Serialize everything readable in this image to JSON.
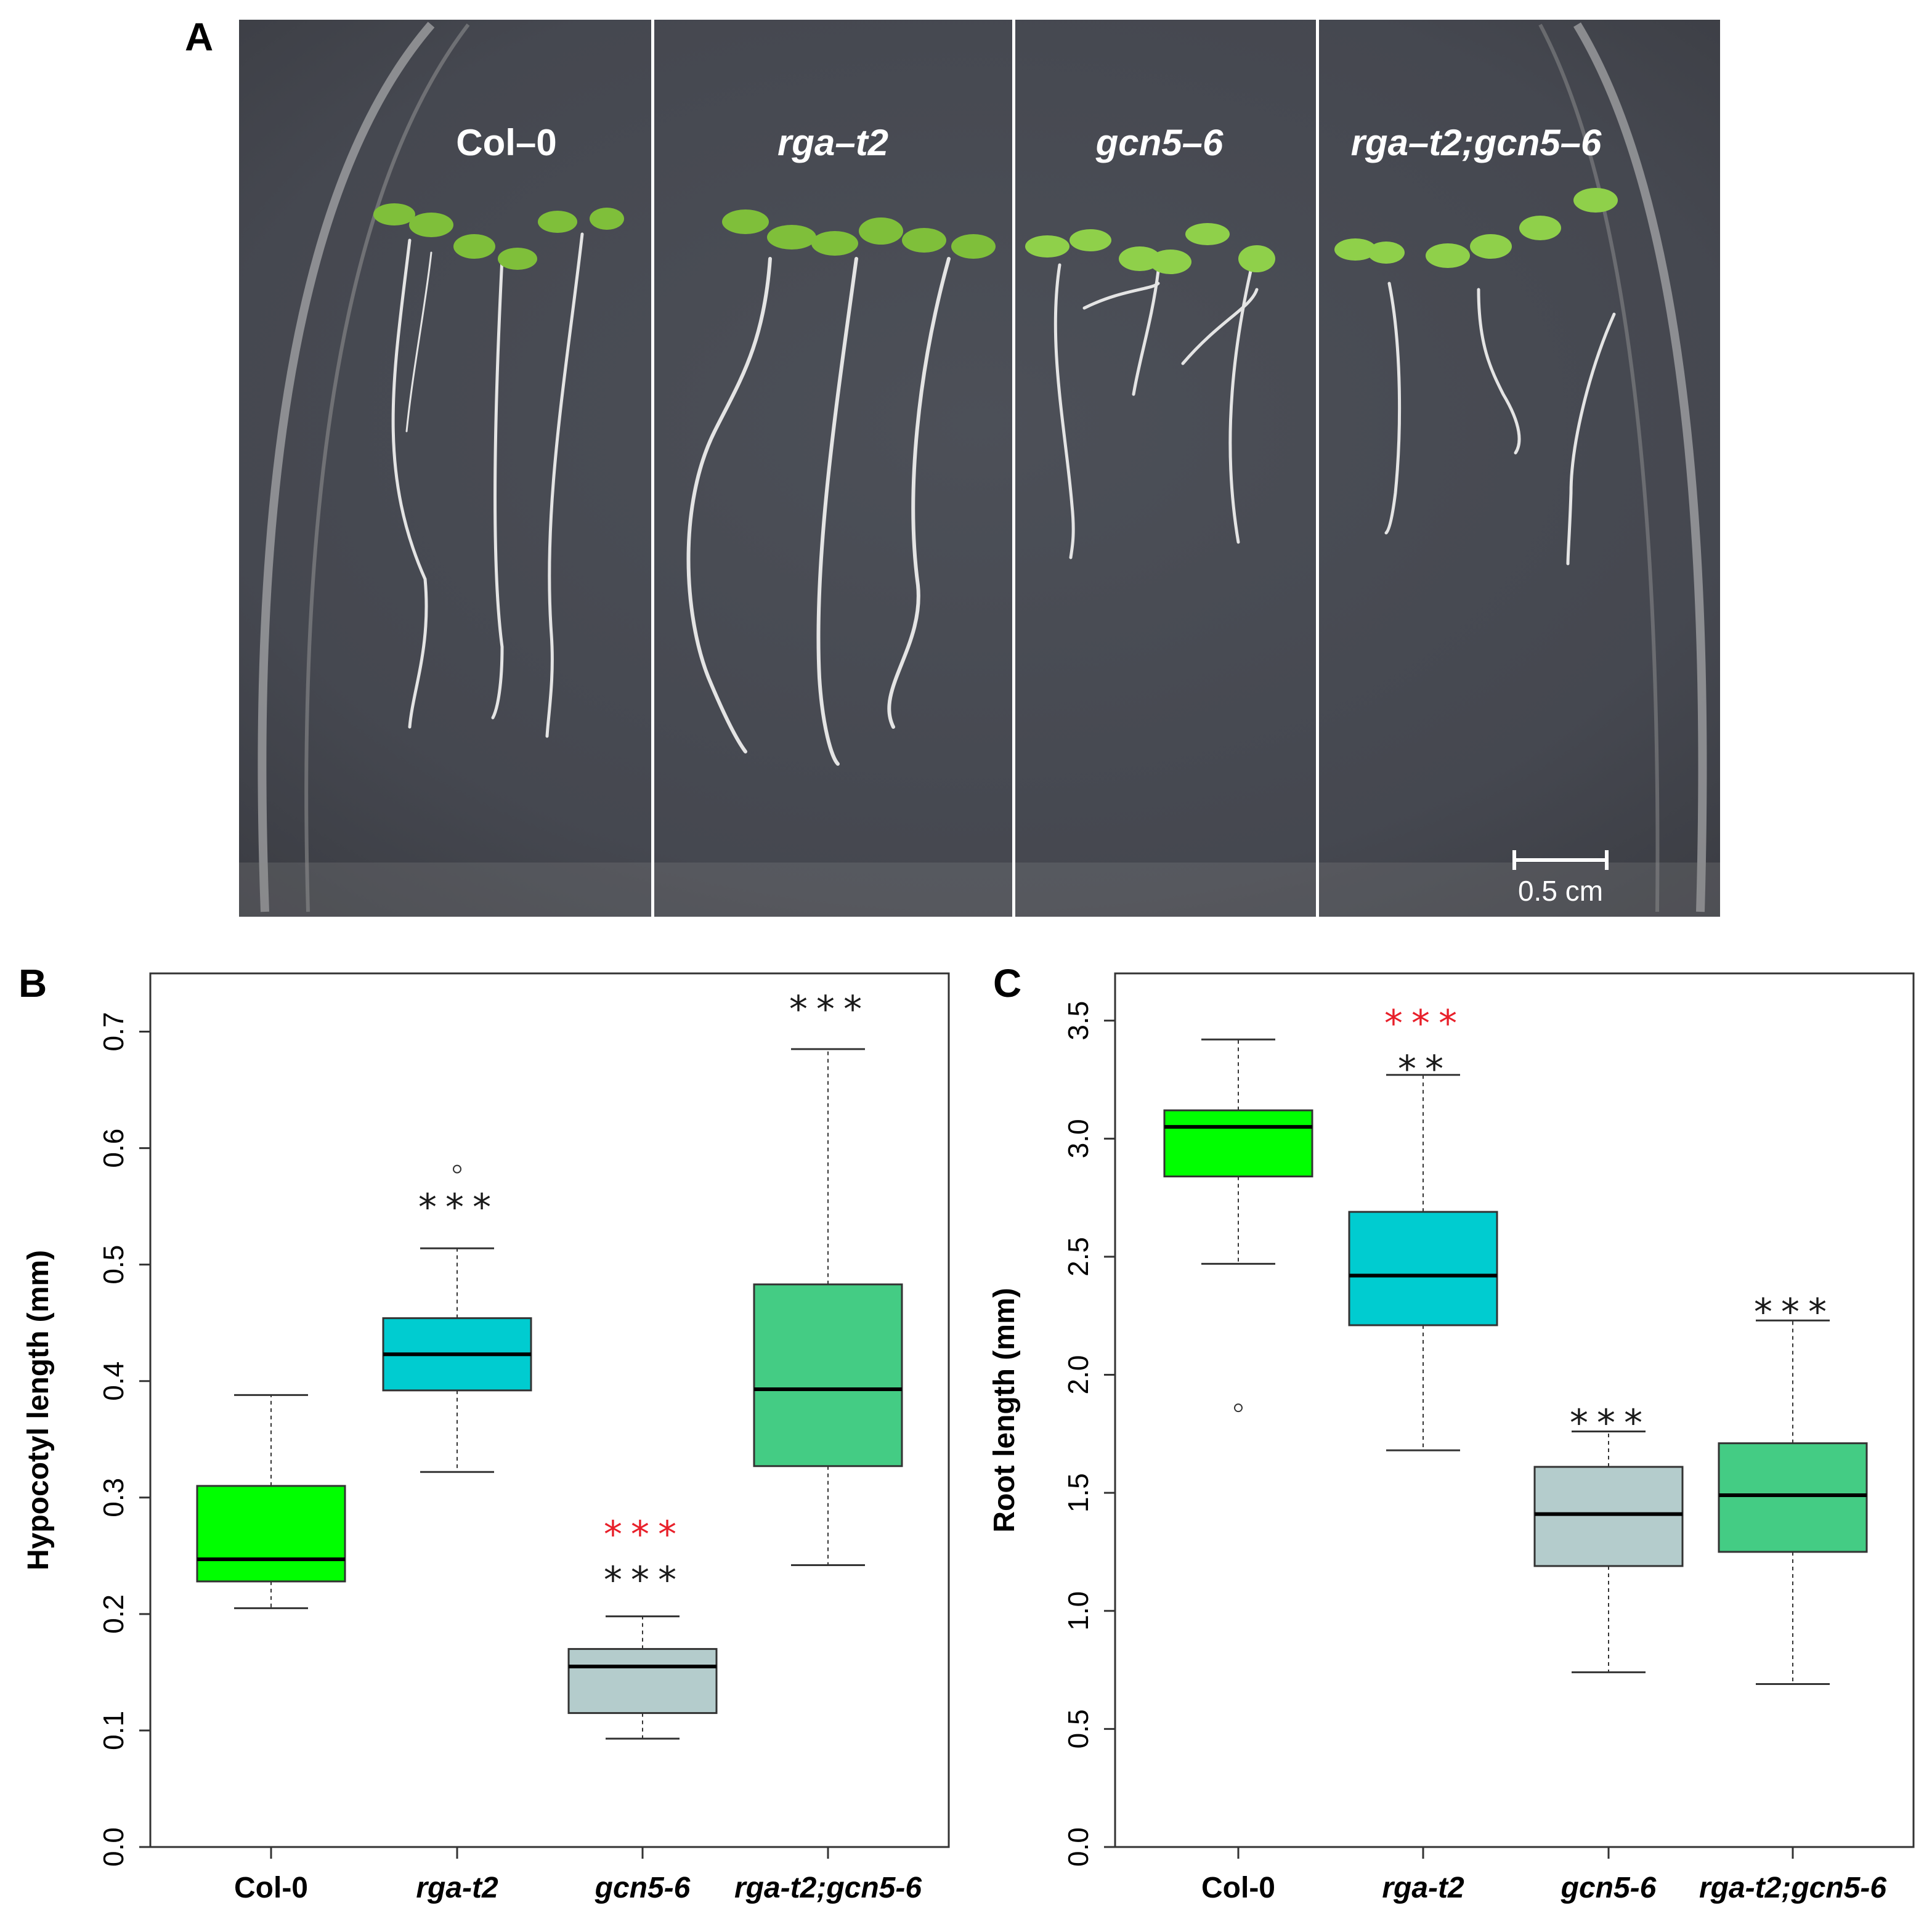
{
  "panel_a": {
    "letter": "A",
    "genotypes": [
      "Col–0",
      "rga–t2",
      "gcn5–6",
      "rga–t2;gcn5–6"
    ],
    "scale_bar_label": "0.5 cm",
    "colors": {
      "background_plate": "#474b55",
      "seedling_leaf": "#7fbf3a",
      "root": "#e6e6e6"
    }
  },
  "chart_data": [
    {
      "panel": "B",
      "type": "box",
      "ylabel": "Hypocotyl length (mm)",
      "xlabel": "",
      "categories": [
        "Col-0",
        "rga-t2",
        "gcn5-6",
        "rga-t2;gcn5-6"
      ],
      "italic_categories": [
        false,
        true,
        true,
        true
      ],
      "ylim": [
        0.0,
        0.75
      ],
      "yticks": [
        0.0,
        0.1,
        0.2,
        0.3,
        0.4,
        0.5,
        0.6,
        0.7
      ],
      "ytick_labels": [
        "0.0",
        "0.1",
        "0.2",
        "0.3",
        "0.4",
        "0.5",
        "0.6",
        "0.7"
      ],
      "boxes": [
        {
          "min": 0.205,
          "q1": 0.228,
          "median": 0.247,
          "q3": 0.31,
          "max": 0.388,
          "outliers": [],
          "color": "#00ff00"
        },
        {
          "min": 0.322,
          "q1": 0.392,
          "median": 0.423,
          "q3": 0.454,
          "max": 0.514,
          "outliers": [
            0.582
          ],
          "color": "#00ccd0"
        },
        {
          "min": 0.093,
          "q1": 0.115,
          "median": 0.155,
          "q3": 0.17,
          "max": 0.198,
          "outliers": [],
          "color": "#b4cccc"
        },
        {
          "min": 0.242,
          "q1": 0.327,
          "median": 0.393,
          "q3": 0.483,
          "max": 0.685,
          "outliers": [],
          "color": "#44cc84"
        }
      ],
      "significance": [
        {
          "category": "rga-t2",
          "y": 0.55,
          "marks": [
            {
              "text": "***",
              "color": "#1a1a1a"
            }
          ]
        },
        {
          "category": "gcn5-6",
          "y": 0.23,
          "marks": [
            {
              "text": "***",
              "color": "#1a1a1a"
            },
            {
              "text": "***",
              "color": "#e8202a"
            }
          ]
        },
        {
          "category": "rga-t2;gcn5-6",
          "y": 0.72,
          "marks": [
            {
              "text": "***",
              "color": "#1a1a1a"
            }
          ]
        }
      ],
      "grid": false,
      "legend": "none"
    },
    {
      "panel": "C",
      "type": "box",
      "ylabel": "Root length (mm)",
      "xlabel": "",
      "categories": [
        "Col-0",
        "rga-t2",
        "gcn5-6",
        "rga-t2;gcn5-6"
      ],
      "italic_categories": [
        false,
        true,
        true,
        true
      ],
      "ylim": [
        0.0,
        3.7
      ],
      "yticks": [
        0.0,
        0.5,
        1.0,
        1.5,
        2.0,
        2.5,
        3.0,
        3.5
      ],
      "ytick_labels": [
        "0.0",
        "0.5",
        "1.0",
        "1.5",
        "2.0",
        "2.5",
        "3.0",
        "3.5"
      ],
      "boxes": [
        {
          "min": 2.47,
          "q1": 2.84,
          "median": 3.05,
          "q3": 3.12,
          "max": 3.42,
          "outliers": [
            1.86
          ],
          "color": "#00ff00"
        },
        {
          "min": 1.68,
          "q1": 2.21,
          "median": 2.42,
          "q3": 2.69,
          "max": 3.27,
          "outliers": [],
          "color": "#00ccd0"
        },
        {
          "min": 0.74,
          "q1": 1.19,
          "median": 1.41,
          "q3": 1.61,
          "max": 1.76,
          "outliers": [],
          "color": "#b4cccc"
        },
        {
          "min": 0.69,
          "q1": 1.25,
          "median": 1.49,
          "q3": 1.71,
          "max": 2.23,
          "outliers": [],
          "color": "#44cc84"
        }
      ],
      "significance": [
        {
          "category": "rga-t2",
          "y": 3.3,
          "marks": [
            {
              "text": "**",
              "color": "#1a1a1a"
            },
            {
              "text": "***",
              "color": "#e8202a"
            }
          ]
        },
        {
          "category": "gcn5-6",
          "y": 1.8,
          "marks": [
            {
              "text": "***",
              "color": "#1a1a1a"
            }
          ]
        },
        {
          "category": "rga-t2;gcn5-6",
          "y": 2.27,
          "marks": [
            {
              "text": "***",
              "color": "#1a1a1a"
            }
          ]
        }
      ],
      "grid": false,
      "legend": "none"
    }
  ]
}
